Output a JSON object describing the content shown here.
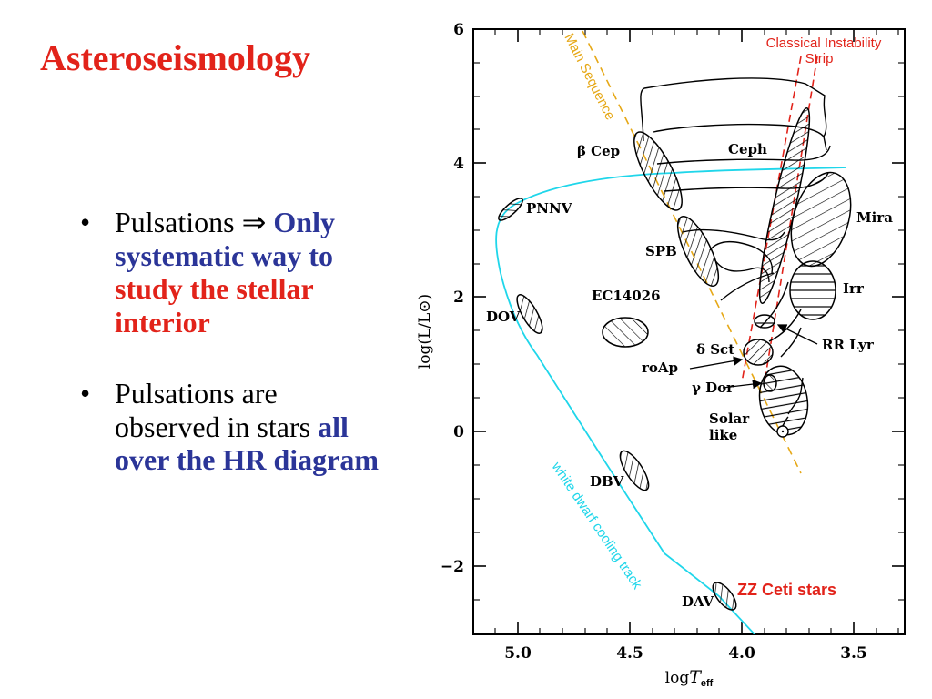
{
  "slide": {
    "title": "Asteroseismology",
    "bullets": [
      {
        "marker": "•",
        "segments": [
          {
            "text": "Pulsations ⇒ ",
            "style": "plain"
          },
          {
            "text": "Only systematic way to ",
            "style": "blue"
          },
          {
            "text": "study the stellar interior",
            "style": "red"
          }
        ]
      },
      {
        "marker": "•",
        "segments": [
          {
            "text": "Pulsations are observed in stars ",
            "style": "plain"
          },
          {
            "text": "all over the HR diagram",
            "style": "blue"
          }
        ]
      }
    ]
  },
  "diagram": {
    "y_axis_label": "log(L/L⊙)",
    "x_axis_label_main": "log",
    "x_axis_label_T": "T",
    "x_axis_label_sub": "eff",
    "x_ticks": [
      "5.0",
      "4.5",
      "4.0",
      "3.5"
    ],
    "y_ticks": [
      "6",
      "4",
      "2",
      "0",
      "−2"
    ],
    "main_sequence_label": "Main Sequence",
    "instability_strip_label_1": "Classical Instability",
    "instability_strip_label_2": "Strip",
    "cooling_track_label": "white dwarf cooling track",
    "zz_ceti_label": "ZZ Ceti stars",
    "regions": {
      "beta_cep": "β Cep",
      "ceph": "Ceph",
      "pnnv": "PNNV",
      "mira": "Mira",
      "spb": "SPB",
      "ec14026": "EC14026",
      "irr": "Irr",
      "dov": "DOV",
      "rr_lyr": "RR Lyr",
      "delta_sct": "δ Sct",
      "roap": "roAp",
      "gamma_dor": "γ Dor",
      "solar_like_1": "Solar",
      "solar_like_2": "like",
      "dbv": "DBV",
      "dav": "DAV"
    },
    "colors": {
      "title_red": "#e2231a",
      "text_blue": "#2b3598",
      "main_sequence": "#e6a817",
      "instability_strip": "#e2231a",
      "cooling_track": "#1fd6ea"
    }
  }
}
